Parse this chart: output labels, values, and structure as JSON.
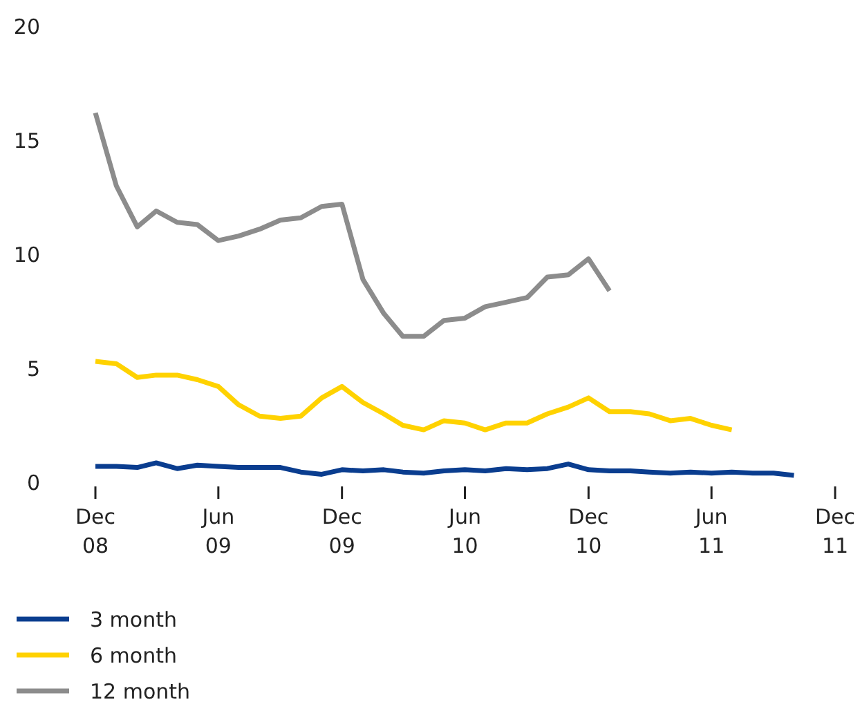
{
  "chart_data": {
    "type": "line",
    "series": [
      {
        "name": "3 month",
        "color": "#0a3d8f",
        "x": [
          "2008-12",
          "2009-01",
          "2009-02",
          "2009-03",
          "2009-04",
          "2009-05",
          "2009-06",
          "2009-07",
          "2009-08",
          "2009-09",
          "2009-10",
          "2009-11",
          "2009-12",
          "2010-01",
          "2010-02",
          "2010-03",
          "2010-04",
          "2010-05",
          "2010-06",
          "2010-07",
          "2010-08",
          "2010-09",
          "2010-10",
          "2010-11",
          "2010-12",
          "2011-01",
          "2011-02",
          "2011-03",
          "2011-04",
          "2011-05",
          "2011-06",
          "2011-07",
          "2011-08",
          "2011-09",
          "2011-10"
        ],
        "values": [
          0.7,
          0.7,
          0.65,
          0.85,
          0.6,
          0.75,
          0.7,
          0.65,
          0.65,
          0.65,
          0.45,
          0.35,
          0.55,
          0.5,
          0.55,
          0.45,
          0.4,
          0.5,
          0.55,
          0.5,
          0.6,
          0.55,
          0.6,
          0.8,
          0.55,
          0.5,
          0.5,
          0.45,
          0.4,
          0.45,
          0.4,
          0.45,
          0.4,
          0.4,
          0.3
        ]
      },
      {
        "name": "6 month",
        "color": "#ffd200",
        "x": [
          "2008-12",
          "2009-01",
          "2009-02",
          "2009-03",
          "2009-04",
          "2009-05",
          "2009-06",
          "2009-07",
          "2009-08",
          "2009-09",
          "2009-10",
          "2009-11",
          "2009-12",
          "2010-01",
          "2010-02",
          "2010-03",
          "2010-04",
          "2010-05",
          "2010-06",
          "2010-07",
          "2010-08",
          "2010-09",
          "2010-10",
          "2010-11",
          "2010-12",
          "2011-01",
          "2011-02",
          "2011-03",
          "2011-04",
          "2011-05",
          "2011-06",
          "2011-07"
        ],
        "values": [
          5.3,
          5.2,
          4.6,
          4.7,
          4.7,
          4.5,
          4.2,
          3.4,
          2.9,
          2.8,
          2.9,
          3.7,
          4.2,
          3.5,
          3.0,
          2.5,
          2.3,
          2.7,
          2.6,
          2.3,
          2.6,
          2.6,
          3.0,
          3.3,
          3.7,
          3.1,
          3.1,
          3.0,
          2.7,
          2.8,
          2.5,
          2.3
        ]
      },
      {
        "name": "12 month",
        "color": "#8c8c8c",
        "x": [
          "2008-12",
          "2009-01",
          "2009-02",
          "2009-03",
          "2009-04",
          "2009-05",
          "2009-06",
          "2009-07",
          "2009-08",
          "2009-09",
          "2009-10",
          "2009-11",
          "2009-12",
          "2010-01",
          "2010-02",
          "2010-03",
          "2010-04",
          "2010-05",
          "2010-06",
          "2010-07",
          "2010-08",
          "2010-09",
          "2010-10",
          "2010-11",
          "2010-12",
          "2011-01"
        ],
        "values": [
          16.2,
          13.0,
          11.2,
          11.9,
          11.4,
          11.3,
          10.6,
          10.8,
          11.1,
          11.5,
          11.6,
          12.1,
          12.2,
          8.9,
          7.4,
          6.4,
          6.4,
          7.1,
          7.2,
          7.7,
          7.9,
          8.1,
          9.0,
          9.1,
          9.8,
          8.4
        ]
      }
    ],
    "xlim": [
      "2008-12",
      "2011-12"
    ],
    "xticks": [
      {
        "value": "2008-12",
        "label": "Dec\n08"
      },
      {
        "value": "2009-06",
        "label": "Jun\n09"
      },
      {
        "value": "2009-12",
        "label": "Dec\n09"
      },
      {
        "value": "2010-06",
        "label": "Jun\n10"
      },
      {
        "value": "2010-12",
        "label": "Dec\n10"
      },
      {
        "value": "2011-06",
        "label": "Jun\n11"
      },
      {
        "value": "2011-12",
        "label": "Dec\n11"
      }
    ],
    "ylim": [
      0,
      20
    ],
    "yticks": [
      0,
      5,
      10,
      15,
      20
    ],
    "grid": false,
    "legend": "bottom",
    "marker": "none",
    "line_style": "solid"
  }
}
